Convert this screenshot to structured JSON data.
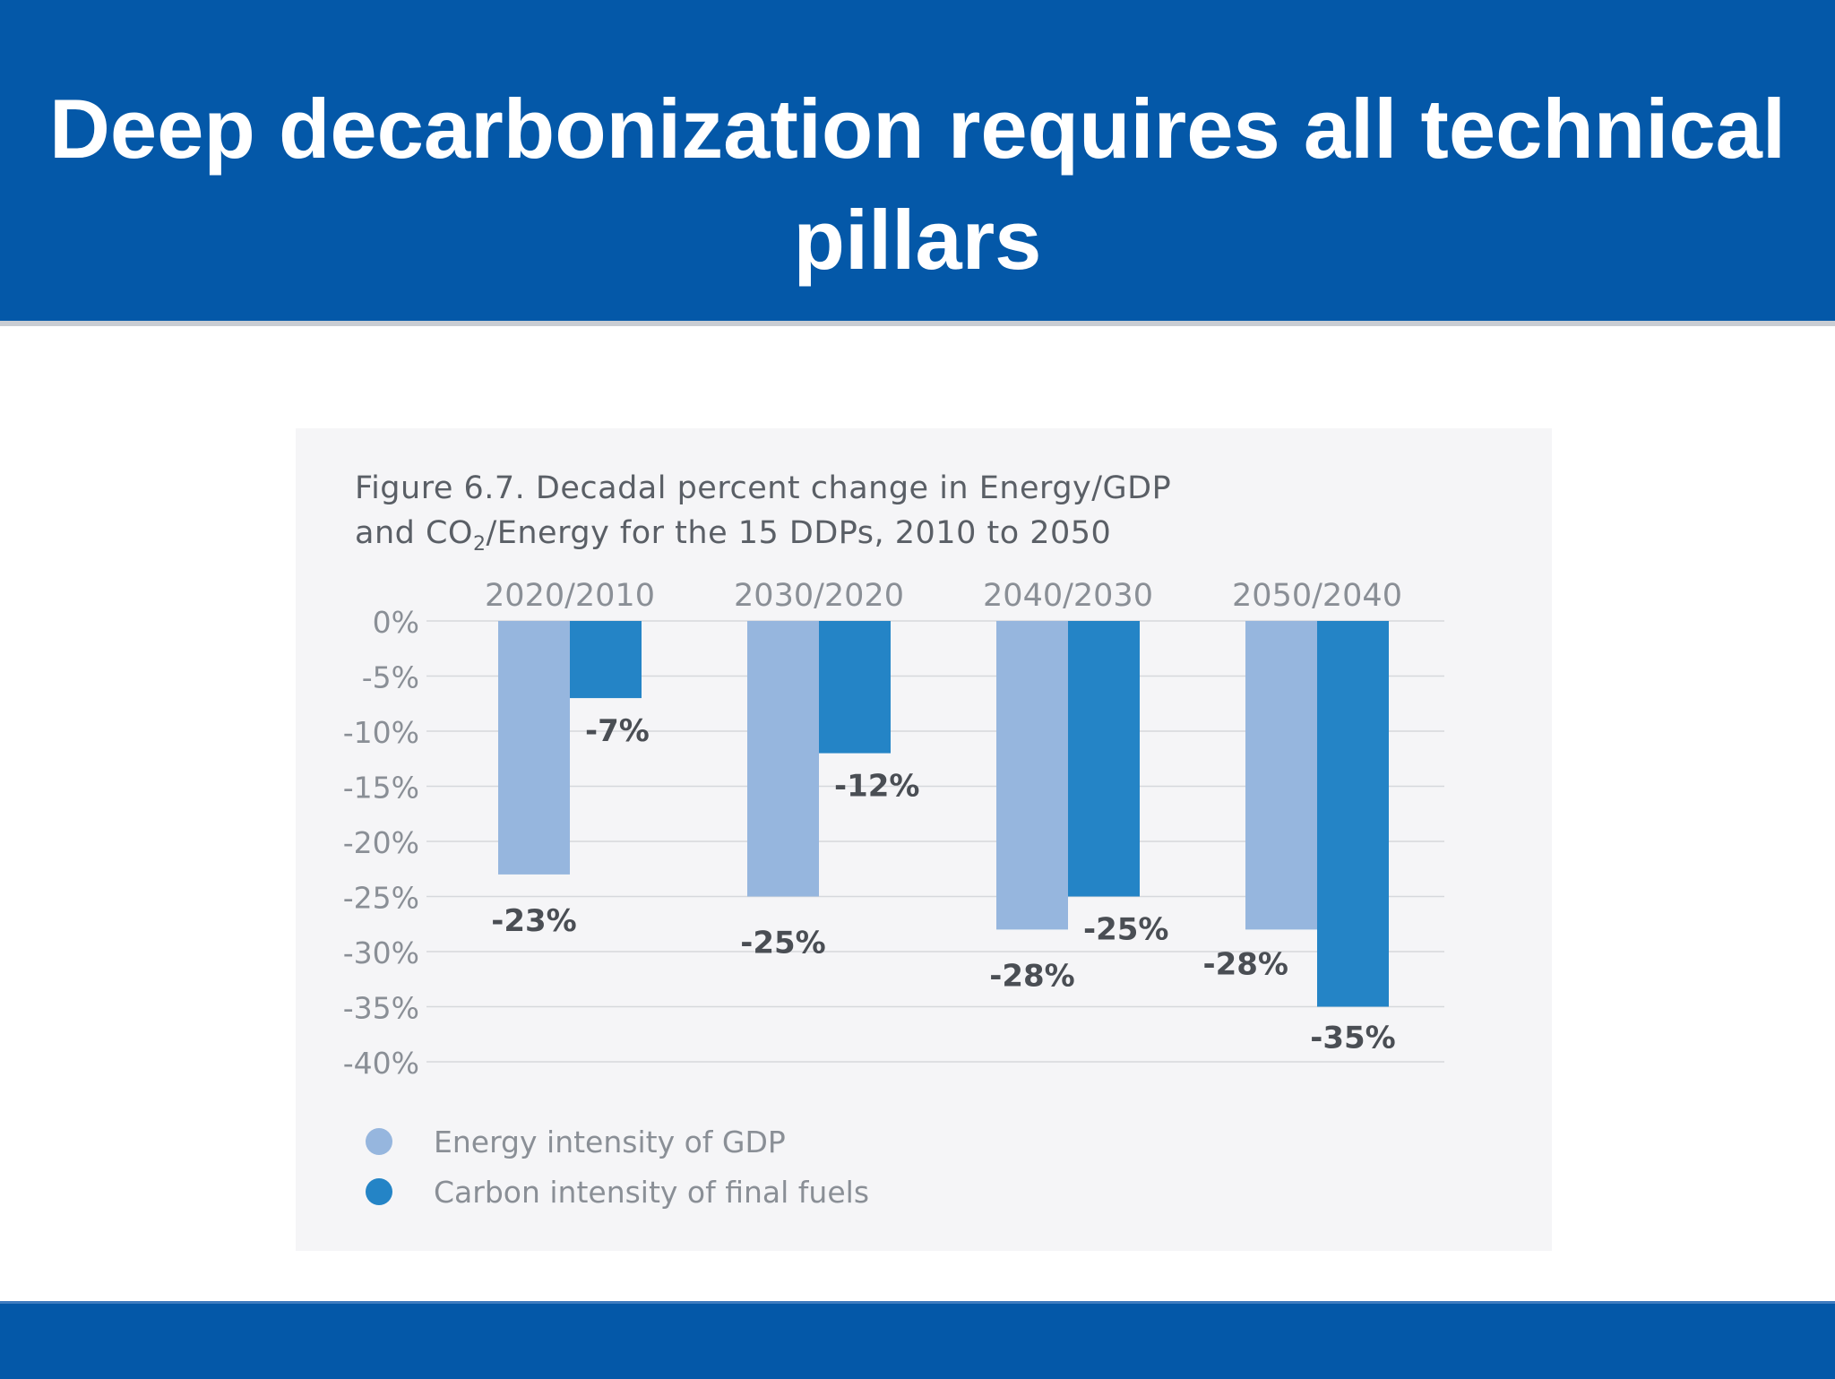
{
  "slide": {
    "title": "Deep decarbonization requires all technical pillars"
  },
  "figure": {
    "title_line1": "Figure 6.7. Decadal percent change in Energy/GDP",
    "title_line2_pre": "and CO",
    "title_line2_sub": "2",
    "title_line2_post": "/Energy for the 15 DDPs, 2010 to 2050"
  },
  "colors": {
    "header": "#0458a8",
    "energy": "#96b6de",
    "carbon": "#2484c6",
    "grid": "#d6d8dc",
    "axis_text": "#8a8f96",
    "label_text": "#4a4e54"
  },
  "chart_data": {
    "type": "bar",
    "categories": [
      "2020/2010",
      "2030/2020",
      "2040/2030",
      "2050/2040"
    ],
    "series": [
      {
        "name": "Energy intensity of GDP",
        "values": [
          -23,
          -25,
          -28,
          -28
        ],
        "labels": [
          "-23%",
          "-25%",
          "-28%",
          "-28%"
        ]
      },
      {
        "name": "Carbon intensity of final fuels",
        "values": [
          -7,
          -12,
          -25,
          -35
        ],
        "labels": [
          "-7%",
          "-12%",
          "-25%",
          "-35%"
        ]
      }
    ],
    "y_ticks": [
      {
        "value": 0,
        "label": "0%"
      },
      {
        "value": -5,
        "label": "-5%"
      },
      {
        "value": -10,
        "label": "-10%"
      },
      {
        "value": -15,
        "label": "-15%"
      },
      {
        "value": -20,
        "label": "-20%"
      },
      {
        "value": -25,
        "label": "-25%"
      },
      {
        "value": -30,
        "label": "-30%"
      },
      {
        "value": -35,
        "label": "-35%"
      },
      {
        "value": -40,
        "label": "-40%"
      }
    ],
    "ylim": [
      -40,
      0
    ],
    "grid": true,
    "legend_position": "bottom-left"
  }
}
